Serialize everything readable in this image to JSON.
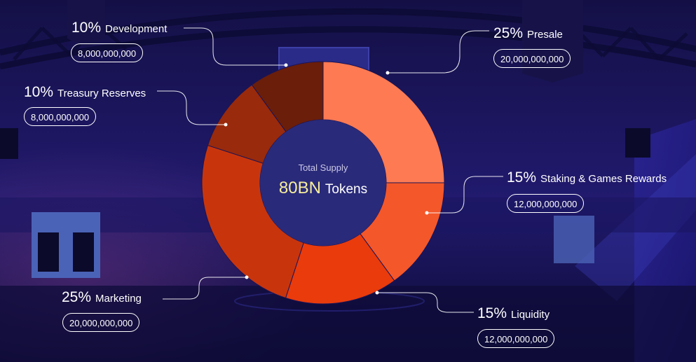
{
  "chart_data": {
    "type": "donut",
    "center": {
      "caption": "Total Supply",
      "value": "80BN",
      "unit": "Tokens"
    },
    "slices": [
      {
        "name": "Presale",
        "percent_label": "25%",
        "amount": "20,000,000,000",
        "value": 25,
        "color": "#fd7a53"
      },
      {
        "name": "Staking & Games Rewards",
        "percent_label": "15%",
        "amount": "12,000,000,000",
        "value": 15,
        "color": "#f4572a"
      },
      {
        "name": "Liquidity",
        "percent_label": "15%",
        "amount": "12,000,000,000",
        "value": 15,
        "color": "#e93b0c"
      },
      {
        "name": "Marketing",
        "percent_label": "25%",
        "amount": "20,000,000,000",
        "value": 25,
        "color": "#c8350d"
      },
      {
        "name": "Treasury Reserves",
        "percent_label": "10%",
        "amount": "8,000,000,000",
        "value": 10,
        "color": "#992a0b"
      },
      {
        "name": "Development",
        "percent_label": "10%",
        "amount": "8,000,000,000",
        "value": 10,
        "color": "#6b1e0a"
      }
    ],
    "start_angle_deg": 0,
    "direction": "clockwise"
  },
  "colors": {
    "background": "#1a1457",
    "leader_line": "#ffffff",
    "center_value": "#f6ee9c"
  }
}
